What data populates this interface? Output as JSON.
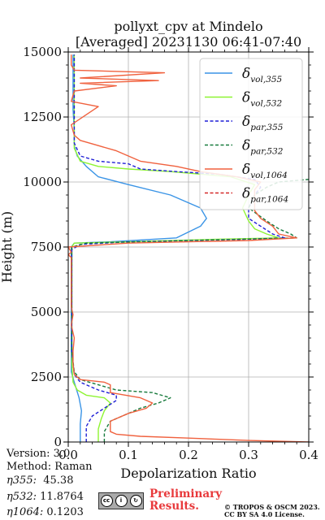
{
  "chart_data": {
    "type": "line",
    "title": "pollyxt_cpv at Mindelo",
    "subtitle": "[Averaged] 20231130 06:41-07:40",
    "xlabel": "Depolarization Ratio",
    "ylabel": "Height (m)",
    "xlim": [
      0,
      0.4
    ],
    "ylim": [
      0,
      15000
    ],
    "xticks": [
      "0.0",
      "0.1",
      "0.2",
      "0.3",
      "0.4"
    ],
    "yticks": [
      "0",
      "2500",
      "5000",
      "7500",
      "10000",
      "12500",
      "15000"
    ],
    "grid": true,
    "legend_position": "top-right",
    "series": [
      {
        "name_main": "δ",
        "name_sub": "vol,355",
        "color": "#3a94e6",
        "dash": "solid",
        "points": [
          [
            0.02,
            0
          ],
          [
            0.02,
            700
          ],
          [
            0.022,
            1200
          ],
          [
            0.018,
            1700
          ],
          [
            0.01,
            2300
          ],
          [
            0.005,
            2700
          ],
          [
            0.005,
            4000
          ],
          [
            0.005,
            6000
          ],
          [
            0.005,
            7500
          ],
          [
            0.01,
            7650
          ],
          [
            0.07,
            7700
          ],
          [
            0.18,
            7850
          ],
          [
            0.22,
            8300
          ],
          [
            0.23,
            8600
          ],
          [
            0.22,
            9000
          ],
          [
            0.17,
            9500
          ],
          [
            0.1,
            9900
          ],
          [
            0.05,
            10200
          ],
          [
            0.03,
            10600
          ],
          [
            0.015,
            11000
          ],
          [
            0.01,
            11400
          ],
          [
            0.01,
            12000
          ],
          [
            0.008,
            12800
          ],
          [
            0.008,
            13500
          ],
          [
            0.008,
            14200
          ],
          [
            0.008,
            14900
          ]
        ]
      },
      {
        "name_main": "δ",
        "name_sub": "vol,532",
        "color": "#8ef432",
        "dash": "solid",
        "points": [
          [
            0.05,
            0
          ],
          [
            0.05,
            500
          ],
          [
            0.055,
            900
          ],
          [
            0.06,
            1200
          ],
          [
            0.07,
            1500
          ],
          [
            0.06,
            1700
          ],
          [
            0.03,
            1800
          ],
          [
            0.015,
            2000
          ],
          [
            0.008,
            2300
          ],
          [
            0.006,
            3000
          ],
          [
            0.006,
            5000
          ],
          [
            0.006,
            7500
          ],
          [
            0.01,
            7650
          ],
          [
            0.1,
            7700
          ],
          [
            0.25,
            7800
          ],
          [
            0.35,
            7850
          ],
          [
            0.33,
            8000
          ],
          [
            0.31,
            8200
          ],
          [
            0.3,
            8500
          ],
          [
            0.29,
            9000
          ],
          [
            0.3,
            9500
          ],
          [
            0.31,
            9900
          ],
          [
            0.27,
            10200
          ],
          [
            0.17,
            10400
          ],
          [
            0.1,
            10500
          ],
          [
            0.05,
            10600
          ],
          [
            0.02,
            10800
          ],
          [
            0.01,
            11300
          ],
          [
            0.01,
            12500
          ],
          [
            0.01,
            14000
          ],
          [
            0.01,
            14900
          ]
        ]
      },
      {
        "name_main": "δ",
        "name_sub": "par,355",
        "color": "#1f1fd6",
        "dash": "dashed",
        "points": [
          [
            0.03,
            0
          ],
          [
            0.03,
            600
          ],
          [
            0.04,
            1000
          ],
          [
            0.06,
            1300
          ],
          [
            0.08,
            1600
          ],
          [
            0.08,
            1800
          ],
          [
            0.05,
            2000
          ],
          [
            0.02,
            2300
          ],
          [
            0.01,
            2600
          ],
          [
            0.006,
            3500
          ],
          [
            0.006,
            5000
          ],
          [
            0.006,
            7400
          ],
          [
            0.02,
            7600
          ],
          [
            0.1,
            7700
          ],
          [
            0.3,
            7800
          ],
          [
            0.36,
            7850
          ],
          [
            0.34,
            8000
          ],
          [
            0.32,
            8300
          ],
          [
            0.3,
            8600
          ],
          [
            0.3,
            9000
          ],
          [
            0.31,
            9500
          ],
          [
            0.32,
            9800
          ],
          [
            0.31,
            10100
          ],
          [
            0.25,
            10300
          ],
          [
            0.18,
            10400
          ],
          [
            0.12,
            10500
          ],
          [
            0.1,
            10700
          ],
          [
            0.05,
            10800
          ],
          [
            0.02,
            11000
          ],
          [
            0.01,
            11500
          ],
          [
            0.01,
            12500
          ],
          [
            0.01,
            14000
          ],
          [
            0.01,
            14900
          ]
        ]
      },
      {
        "name_main": "δ",
        "name_sub": "par,532",
        "color": "#177a3c",
        "dash": "dashed",
        "points": [
          [
            0.06,
            0
          ],
          [
            0.06,
            400
          ],
          [
            0.07,
            800
          ],
          [
            0.09,
            1000
          ],
          [
            0.12,
            1300
          ],
          [
            0.15,
            1500
          ],
          [
            0.17,
            1700
          ],
          [
            0.14,
            1900
          ],
          [
            0.08,
            2000
          ],
          [
            0.05,
            2200
          ],
          [
            0.02,
            2400
          ],
          [
            0.01,
            2700
          ],
          [
            0.006,
            3500
          ],
          [
            0.006,
            5000
          ],
          [
            0.006,
            7500
          ],
          [
            0.03,
            7650
          ],
          [
            0.2,
            7750
          ],
          [
            0.38,
            7850
          ],
          [
            0.37,
            8000
          ],
          [
            0.35,
            8200
          ],
          [
            0.33,
            8500
          ],
          [
            0.3,
            9000
          ],
          [
            0.31,
            9500
          ],
          [
            0.33,
            9800
          ],
          [
            0.35,
            10000
          ],
          [
            0.4,
            10100
          ]
        ]
      },
      {
        "name_main": "δ",
        "name_sub": "vol,1064",
        "color": "#f0613e",
        "dash": "solid",
        "points": [
          [
            0.4,
            0
          ],
          [
            0.3,
            60
          ],
          [
            0.2,
            150
          ],
          [
            0.12,
            220
          ],
          [
            0.08,
            300
          ],
          [
            0.07,
            400
          ],
          [
            0.07,
            800
          ],
          [
            0.1,
            1100
          ],
          [
            0.13,
            1300
          ],
          [
            0.14,
            1500
          ],
          [
            0.12,
            1700
          ],
          [
            0.07,
            1900
          ],
          [
            0.07,
            2200
          ],
          [
            0.06,
            2300
          ],
          [
            0.02,
            2400
          ],
          [
            0.01,
            2600
          ],
          [
            0.008,
            3000
          ],
          [
            0.008,
            3500
          ],
          [
            0.01,
            4000
          ],
          [
            0.005,
            4500
          ],
          [
            0.008,
            4900
          ],
          [
            0.005,
            5200
          ],
          [
            0.005,
            6000
          ],
          [
            0.005,
            6500
          ],
          [
            0.005,
            6800
          ],
          [
            0.005,
            7100
          ],
          [
            0,
            7200
          ],
          [
            0.005,
            7300
          ],
          [
            0,
            7500
          ],
          [
            0.1,
            7650
          ],
          [
            0.3,
            7750
          ],
          [
            0.38,
            7850
          ],
          [
            0.35,
            8000
          ],
          [
            0.34,
            8300
          ],
          [
            0.32,
            8600
          ],
          [
            0.31,
            8900
          ],
          [
            0.31,
            9300
          ],
          [
            0.31,
            9700
          ],
          [
            0.32,
            10000
          ],
          [
            0.28,
            10200
          ],
          [
            0.22,
            10400
          ],
          [
            0.18,
            10600
          ],
          [
            0.12,
            10800
          ],
          [
            0.1,
            11000
          ],
          [
            0.08,
            11200
          ],
          [
            0.05,
            11400
          ],
          [
            0.02,
            11600
          ],
          [
            0.01,
            11800
          ],
          [
            0.005,
            12200
          ],
          [
            0.05,
            12900
          ],
          [
            0.005,
            13100
          ],
          [
            0.01,
            13500
          ],
          [
            0.08,
            13700
          ],
          [
            0.02,
            13800
          ],
          [
            0.15,
            13900
          ],
          [
            0.02,
            14000
          ],
          [
            0.16,
            14200
          ],
          [
            0.01,
            14300
          ],
          [
            0.005,
            14500
          ],
          [
            0.005,
            14900
          ]
        ]
      },
      {
        "name_main": "δ",
        "name_sub": "par,1064",
        "color": "#d42828",
        "dash": "dashed",
        "points": []
      }
    ]
  },
  "metadata": {
    "version": "Version: 3.0",
    "method": "Method: Raman",
    "eta355_label": "η355:",
    "eta355_value": "45.38",
    "eta532_label": "η532:",
    "eta532_value": "11.8764",
    "eta1064_label": "η1064:",
    "eta1064_value": "0.1203"
  },
  "footer": {
    "cc_badge": "cc BY SA",
    "preliminary_line1": "Preliminary",
    "preliminary_line2": "Results.",
    "license_line1": "© TROPOS & OSCM 2023.",
    "license_line2": "CC BY SA 4.0 License."
  }
}
